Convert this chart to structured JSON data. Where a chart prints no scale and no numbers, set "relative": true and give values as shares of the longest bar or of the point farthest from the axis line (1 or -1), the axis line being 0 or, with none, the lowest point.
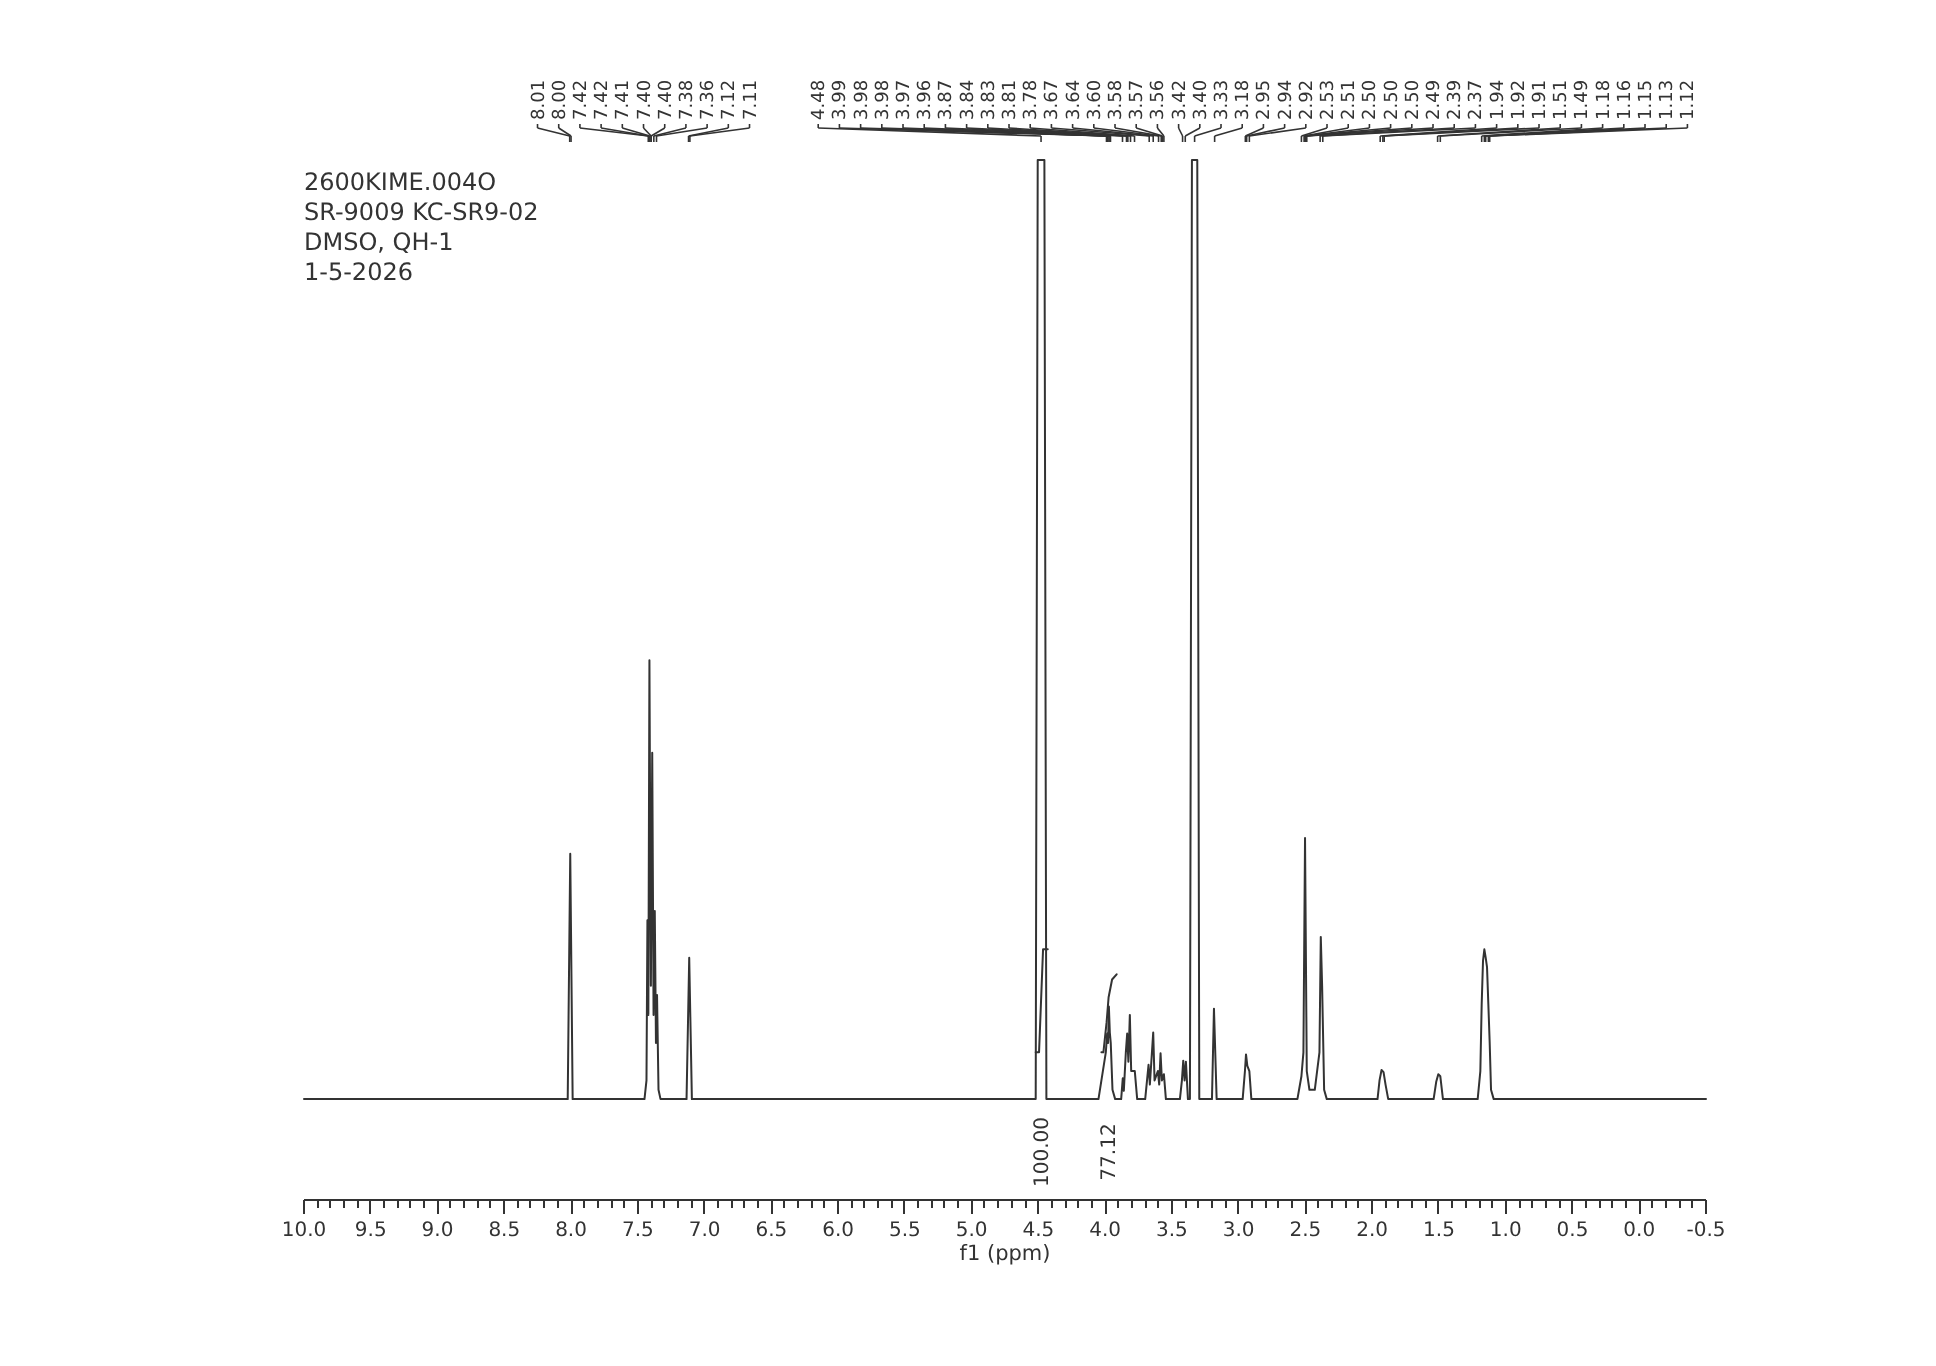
{
  "chart_data": {
    "type": "line",
    "relative": true,
    "xlabel": "f1 (ppm)",
    "xlim": [
      10.0,
      -0.5
    ],
    "xticks": [
      {
        "value": 10,
        "label": "10.0"
      },
      {
        "value": 9.9,
        "label": null
      },
      {
        "value": 9.8,
        "label": null
      },
      {
        "value": 9.7,
        "label": null
      },
      {
        "value": 9.6,
        "label": null
      },
      9.5,
      {
        "value": 9.4,
        "label": null
      },
      {
        "value": 9.3,
        "label": null
      },
      {
        "value": 9.2,
        "label": null
      },
      {
        "value": 9.1,
        "label": null
      },
      {
        "value": 9,
        "label": "9.0"
      },
      {
        "value": 8.9,
        "label": null
      },
      {
        "value": 8.8,
        "label": null
      },
      {
        "value": 8.7,
        "label": null
      },
      {
        "value": 8.6,
        "label": null
      },
      8.5,
      {
        "value": 8.4,
        "label": null
      },
      {
        "value": 8.3,
        "label": null
      },
      {
        "value": 8.2,
        "label": null
      },
      {
        "value": 8.1,
        "label": null
      },
      {
        "value": 8,
        "label": "8.0"
      },
      {
        "value": 7.9,
        "label": null
      },
      {
        "value": 7.8,
        "label": null
      },
      {
        "value": 7.7,
        "label": null
      },
      {
        "value": 7.6,
        "label": null
      },
      7.5,
      {
        "value": 7.4,
        "label": null
      },
      {
        "value": 7.3,
        "label": null
      },
      {
        "value": 7.2,
        "label": null
      },
      {
        "value": 7.1,
        "label": null
      },
      {
        "value": 7,
        "label": "7.0"
      },
      {
        "value": 6.9,
        "label": null
      },
      {
        "value": 6.8,
        "label": null
      },
      {
        "value": 6.7,
        "label": null
      },
      {
        "value": 6.6,
        "label": null
      },
      6.5,
      {
        "value": 6.4,
        "label": null
      },
      {
        "value": 6.3,
        "label": null
      },
      {
        "value": 6.2,
        "label": null
      },
      {
        "value": 6.1,
        "label": null
      },
      {
        "value": 6,
        "label": "6.0"
      },
      {
        "value": 5.9,
        "label": null
      },
      {
        "value": 5.8,
        "label": null
      },
      {
        "value": 5.7,
        "label": null
      },
      {
        "value": 5.6,
        "label": null
      },
      5.5,
      {
        "value": 5.4,
        "label": null
      },
      {
        "value": 5.3,
        "label": null
      },
      {
        "value": 5.2,
        "label": null
      },
      {
        "value": 5.1,
        "label": null
      },
      {
        "value": 5,
        "label": "5.0"
      },
      {
        "value": 4.9,
        "label": null
      },
      {
        "value": 4.8,
        "label": null
      },
      {
        "value": 4.7,
        "label": null
      },
      {
        "value": 4.6,
        "label": null
      },
      4.5,
      {
        "value": 4.4,
        "label": null
      },
      {
        "value": 4.3,
        "label": null
      },
      {
        "value": 4.2,
        "label": null
      },
      {
        "value": 4.1,
        "label": null
      },
      {
        "value": 4,
        "label": "4.0"
      },
      {
        "value": 3.9,
        "label": null
      },
      {
        "value": 3.8,
        "label": null
      },
      {
        "value": 3.7,
        "label": null
      },
      {
        "value": 3.6,
        "label": null
      },
      3.5,
      {
        "value": 3.4,
        "label": null
      },
      {
        "value": 3.3,
        "label": null
      },
      {
        "value": 3.2,
        "label": null
      },
      {
        "value": 3.1,
        "label": null
      },
      {
        "value": 3,
        "label": "3.0"
      },
      {
        "value": 2.9,
        "label": null
      },
      {
        "value": 2.8,
        "label": null
      },
      {
        "value": 2.7,
        "label": null
      },
      {
        "value": 2.6,
        "label": null
      },
      2.5,
      {
        "value": 2.4,
        "label": null
      },
      {
        "value": 2.3,
        "label": null
      },
      {
        "value": 2.2,
        "label": null
      },
      {
        "value": 2.1,
        "label": null
      },
      {
        "value": 2,
        "label": "2.0"
      },
      {
        "value": 1.9,
        "label": null
      },
      {
        "value": 1.8,
        "label": null
      },
      {
        "value": 1.7,
        "label": null
      },
      {
        "value": 1.6,
        "label": null
      },
      1.5,
      {
        "value": 1.4,
        "label": null
      },
      {
        "value": 1.3,
        "label": null
      },
      {
        "value": 1.2,
        "label": null
      },
      {
        "value": 1.1,
        "label": null
      },
      {
        "value": 1,
        "label": "1.0"
      },
      {
        "value": 0.9,
        "label": null
      },
      {
        "value": 0.8,
        "label": null
      },
      {
        "value": 0.7,
        "label": null
      },
      {
        "value": 0.6,
        "label": null
      },
      0.5,
      {
        "value": 0.4,
        "label": null
      },
      {
        "value": 0.3,
        "label": null
      },
      {
        "value": 0.2,
        "label": null
      },
      {
        "value": 0.1,
        "label": null
      },
      {
        "value": 0,
        "label": "0.0"
      },
      {
        "value": -0.1,
        "label": null
      },
      {
        "value": -0.2,
        "label": null
      },
      {
        "value": -0.3,
        "label": null
      },
      {
        "value": -0.4,
        "label": null
      },
      -0.5
    ],
    "series": [
      {
        "color": "#333333",
        "x": [
          10.0,
          8.025,
          8.006,
          7.988,
          7.45,
          7.435,
          7.428,
          7.421,
          7.413,
          7.402,
          7.392,
          7.382,
          7.373,
          7.364,
          7.356,
          7.345,
          7.33,
          7.135,
          7.115,
          7.095,
          4.6,
          4.52,
          4.505,
          4.48,
          4.455,
          4.44,
          4.05,
          3.995,
          3.985,
          3.978,
          3.972,
          3.965,
          3.958,
          3.945,
          3.925,
          3.88,
          3.868,
          3.86,
          3.845,
          3.835,
          3.826,
          3.815,
          3.805,
          3.788,
          3.778,
          3.76,
          3.7,
          3.675,
          3.665,
          3.64,
          3.63,
          3.605,
          3.595,
          3.585,
          3.575,
          3.56,
          3.545,
          3.44,
          3.425,
          3.415,
          3.405,
          3.395,
          3.38,
          3.365,
          3.35,
          3.33,
          3.31,
          3.295,
          3.2,
          3.185,
          3.165,
          2.97,
          2.953,
          2.945,
          2.935,
          2.92,
          2.905,
          2.56,
          2.53,
          2.515,
          2.503,
          2.49,
          2.47,
          2.43,
          2.395,
          2.385,
          2.375,
          2.36,
          2.34,
          1.96,
          1.945,
          1.93,
          1.915,
          1.9,
          1.88,
          1.54,
          1.52,
          1.505,
          1.49,
          1.47,
          1.21,
          1.19,
          1.18,
          1.17,
          1.16,
          1.15,
          1.14,
          1.13,
          1.12,
          1.11,
          1.09,
          -0.5
        ],
        "values": [
          0.097,
          0.097,
          0.333,
          0.097,
          0.097,
          0.115,
          0.269,
          0.178,
          0.519,
          0.206,
          0.43,
          0.178,
          0.278,
          0.151,
          0.197,
          0.106,
          0.097,
          0.097,
          0.233,
          0.097,
          0.097,
          0.097,
          1.0,
          1.0,
          1.0,
          0.097,
          0.097,
          0.142,
          0.16,
          0.151,
          0.186,
          0.161,
          0.151,
          0.106,
          0.097,
          0.097,
          0.117,
          0.105,
          0.142,
          0.16,
          0.133,
          0.178,
          0.124,
          0.124,
          0.124,
          0.097,
          0.097,
          0.13,
          0.111,
          0.161,
          0.115,
          0.124,
          0.111,
          0.141,
          0.115,
          0.121,
          0.097,
          0.097,
          0.115,
          0.134,
          0.115,
          0.133,
          0.097,
          0.097,
          1.0,
          1.0,
          1.0,
          0.097,
          0.097,
          0.184,
          0.097,
          0.097,
          0.124,
          0.14,
          0.129,
          0.124,
          0.097,
          0.097,
          0.119,
          0.142,
          0.348,
          0.124,
          0.106,
          0.106,
          0.142,
          0.253,
          0.206,
          0.106,
          0.097,
          0.097,
          0.115,
          0.125,
          0.123,
          0.111,
          0.097,
          0.097,
          0.114,
          0.121,
          0.119,
          0.097,
          0.097,
          0.124,
          0.188,
          0.23,
          0.241,
          0.233,
          0.224,
          0.188,
          0.151,
          0.106,
          0.097,
          0.097
        ]
      },
      {
        "type": "line",
        "name": "100.00",
        "color": "#333333",
        "x": [
          4.52,
          4.495,
          4.465,
          4.43
        ],
        "values": [
          0.142,
          0.142,
          0.241,
          0.241
        ]
      },
      {
        "type": "line",
        "name": "77.12",
        "color": "#333333",
        "x": [
          4.028,
          4.013,
          3.989,
          3.974,
          3.948,
          3.914
        ],
        "values": [
          0.142,
          0.142,
          0.171,
          0.195,
          0.212,
          0.217
        ]
      }
    ],
    "annotations": [
      "2600KIME.004O",
      "SR-9009 KC-SR9-02",
      "DMSO, QH-1",
      "1-5-2026",
      {
        "text": "8.01",
        "x": 8.01
      },
      {
        "text": "8.00",
        "x": 8.0
      },
      {
        "text": "7.42",
        "x": 7.42
      },
      {
        "text": "7.42",
        "x": 7.42
      },
      {
        "text": "7.41",
        "x": 7.41
      },
      {
        "text": "7.40",
        "x": 7.4
      },
      {
        "text": "7.40",
        "x": 7.4
      },
      {
        "text": "7.38",
        "x": 7.38
      },
      {
        "text": "7.36",
        "x": 7.36
      },
      {
        "text": "7.12",
        "x": 7.12
      },
      {
        "text": "7.11",
        "x": 7.11
      },
      {
        "text": "4.48",
        "x": 4.48
      },
      {
        "text": "3.99",
        "x": 3.99
      },
      {
        "text": "3.98",
        "x": 3.98
      },
      {
        "text": "3.98",
        "x": 3.98
      },
      {
        "text": "3.97",
        "x": 3.97
      },
      {
        "text": "3.96",
        "x": 3.96
      },
      {
        "text": "3.87",
        "x": 3.87
      },
      {
        "text": "3.84",
        "x": 3.84
      },
      {
        "text": "3.83",
        "x": 3.83
      },
      {
        "text": "3.81",
        "x": 3.81
      },
      {
        "text": "3.78",
        "x": 3.78
      },
      {
        "text": "3.67",
        "x": 3.67
      },
      {
        "text": "3.64",
        "x": 3.64
      },
      {
        "text": "3.60",
        "x": 3.6
      },
      {
        "text": "3.58",
        "x": 3.58
      },
      {
        "text": "3.57",
        "x": 3.57
      },
      {
        "text": "3.56",
        "x": 3.56
      },
      {
        "text": "3.42",
        "x": 3.42
      },
      {
        "text": "3.40",
        "x": 3.4
      },
      {
        "text": "3.33",
        "x": 3.33
      },
      {
        "text": "3.18",
        "x": 3.18
      },
      {
        "text": "2.95",
        "x": 2.95
      },
      {
        "text": "2.94",
        "x": 2.94
      },
      {
        "text": "2.92",
        "x": 2.92
      },
      {
        "text": "2.53",
        "x": 2.53
      },
      {
        "text": "2.51",
        "x": 2.51
      },
      {
        "text": "2.50",
        "x": 2.5
      },
      {
        "text": "2.50",
        "x": 2.5
      },
      {
        "text": "2.50",
        "x": 2.5
      },
      {
        "text": "2.49",
        "x": 2.49
      },
      {
        "text": "2.39",
        "x": 2.39
      },
      {
        "text": "2.37",
        "x": 2.37
      },
      {
        "text": "1.94",
        "x": 1.94
      },
      {
        "text": "1.92",
        "x": 1.92
      },
      {
        "text": "1.91",
        "x": 1.91
      },
      {
        "text": "1.51",
        "x": 1.51
      },
      {
        "text": "1.49",
        "x": 1.49
      },
      {
        "text": "1.18",
        "x": 1.18
      },
      {
        "text": "1.16",
        "x": 1.16
      },
      {
        "text": "1.15",
        "x": 1.15
      },
      {
        "text": "1.13",
        "x": 1.13
      },
      {
        "text": "1.12",
        "x": 1.12
      }
    ]
  }
}
